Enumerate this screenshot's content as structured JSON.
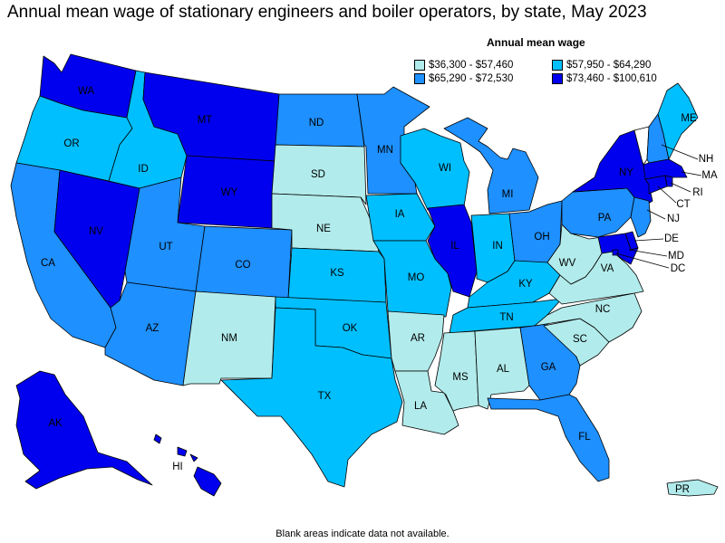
{
  "title": "Annual mean wage of stationary engineers and boiler operators, by state, May 2023",
  "legend": {
    "title": "Annual mean wage",
    "items": [
      {
        "label": "$36,300 - $57,460",
        "color": "#b2ebeb"
      },
      {
        "label": "$57,950 - $64,290",
        "color": "#00bfff"
      },
      {
        "label": "$65,290 - $72,530",
        "color": "#1e90ff"
      },
      {
        "label": "$73,460 - $100,610",
        "color": "#0000ee"
      }
    ]
  },
  "footnote": "Blank areas indicate data not available.",
  "states": [
    {
      "abbr": "WA",
      "tier": 3
    },
    {
      "abbr": "OR",
      "tier": 1
    },
    {
      "abbr": "CA",
      "tier": 2
    },
    {
      "abbr": "NV",
      "tier": 3
    },
    {
      "abbr": "ID",
      "tier": 1
    },
    {
      "abbr": "MT",
      "tier": 3
    },
    {
      "abbr": "WY",
      "tier": 3
    },
    {
      "abbr": "UT",
      "tier": 2
    },
    {
      "abbr": "AZ",
      "tier": 2
    },
    {
      "abbr": "CO",
      "tier": 2
    },
    {
      "abbr": "NM",
      "tier": 0
    },
    {
      "abbr": "ND",
      "tier": 2
    },
    {
      "abbr": "SD",
      "tier": 0
    },
    {
      "abbr": "NE",
      "tier": 0
    },
    {
      "abbr": "KS",
      "tier": 1
    },
    {
      "abbr": "OK",
      "tier": 1
    },
    {
      "abbr": "TX",
      "tier": 1
    },
    {
      "abbr": "MN",
      "tier": 2
    },
    {
      "abbr": "IA",
      "tier": 1
    },
    {
      "abbr": "MO",
      "tier": 1
    },
    {
      "abbr": "AR",
      "tier": 0
    },
    {
      "abbr": "LA",
      "tier": 0
    },
    {
      "abbr": "WI",
      "tier": 1
    },
    {
      "abbr": "IL",
      "tier": 3
    },
    {
      "abbr": "MI",
      "tier": 2
    },
    {
      "abbr": "IN",
      "tier": 1
    },
    {
      "abbr": "OH",
      "tier": 2
    },
    {
      "abbr": "KY",
      "tier": 1
    },
    {
      "abbr": "TN",
      "tier": 1
    },
    {
      "abbr": "MS",
      "tier": 0
    },
    {
      "abbr": "AL",
      "tier": 0
    },
    {
      "abbr": "GA",
      "tier": 2
    },
    {
      "abbr": "FL",
      "tier": 2
    },
    {
      "abbr": "SC",
      "tier": 0
    },
    {
      "abbr": "NC",
      "tier": 0
    },
    {
      "abbr": "VA",
      "tier": 0
    },
    {
      "abbr": "WV",
      "tier": 0
    },
    {
      "abbr": "PA",
      "tier": 2
    },
    {
      "abbr": "NY",
      "tier": 3
    },
    {
      "abbr": "VT",
      "tier": null
    },
    {
      "abbr": "NH",
      "tier": 2
    },
    {
      "abbr": "ME",
      "tier": 1
    },
    {
      "abbr": "MA",
      "tier": 3
    },
    {
      "abbr": "RI",
      "tier": 3
    },
    {
      "abbr": "CT",
      "tier": 3
    },
    {
      "abbr": "NJ",
      "tier": 2
    },
    {
      "abbr": "DE",
      "tier": 3
    },
    {
      "abbr": "MD",
      "tier": 3
    },
    {
      "abbr": "DC",
      "tier": 3
    },
    {
      "abbr": "AK",
      "tier": 3
    },
    {
      "abbr": "HI",
      "tier": 3
    },
    {
      "abbr": "PR",
      "tier": 0
    }
  ],
  "labels": [
    "WA",
    "OR",
    "CA",
    "NV",
    "ID",
    "MT",
    "WY",
    "UT",
    "AZ",
    "CO",
    "NM",
    "ND",
    "SD",
    "NE",
    "KS",
    "OK",
    "TX",
    "MN",
    "IA",
    "MO",
    "AR",
    "LA",
    "WI",
    "IL",
    "MI",
    "IN",
    "OH",
    "KY",
    "TN",
    "MS",
    "AL",
    "GA",
    "FL",
    "SC",
    "NC",
    "VA",
    "WV",
    "PA",
    "NY",
    "ME",
    "NH",
    "MA",
    "CT",
    "RI",
    "NJ",
    "DE",
    "MD",
    "DC",
    "AK",
    "HI",
    "PR"
  ]
}
